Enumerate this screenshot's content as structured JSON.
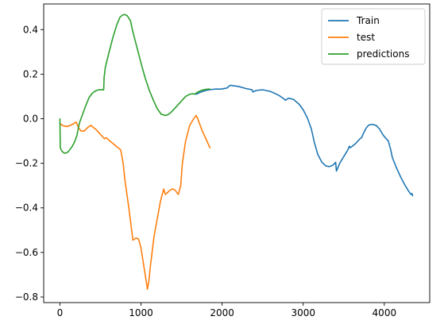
{
  "chart_data": {
    "type": "line",
    "title": "",
    "xlabel": "",
    "ylabel": "",
    "xlim": [
      -200,
      4560
    ],
    "ylim": [
      -0.825,
      0.515
    ],
    "x_ticks": [
      0,
      1000,
      2000,
      3000,
      4000
    ],
    "y_ticks": [
      -0.8,
      -0.6,
      -0.4,
      -0.2,
      0.0,
      0.2,
      0.4
    ],
    "x_tick_labels": [
      "0",
      "1000",
      "2000",
      "3000",
      "4000"
    ],
    "y_tick_labels": [
      "−0.8",
      "−0.6",
      "−0.4",
      "−0.2",
      "0.0",
      "0.2",
      "0.4"
    ],
    "grid": false,
    "legend_position": "top-right",
    "series": [
      {
        "name": "Train",
        "color": "#1f77b4",
        "x": [
          1680,
          1700,
          1740,
          1800,
          1860,
          1920,
          1990,
          2060,
          2100,
          2200,
          2300,
          2370,
          2380,
          2420,
          2500,
          2600,
          2700,
          2760,
          2780,
          2820,
          2880,
          2950,
          3000,
          3050,
          3100,
          3140,
          3180,
          3230,
          3280,
          3320,
          3360,
          3390,
          3400,
          3410,
          3450,
          3500,
          3550,
          3570,
          3580,
          3600,
          3650,
          3700,
          3720,
          3750,
          3780,
          3810,
          3850,
          3900,
          3940,
          3980,
          4000,
          4050,
          4080,
          4100,
          4150,
          4200,
          4250,
          4300,
          4330,
          4340,
          4350
        ],
        "y": [
          0.11,
          0.113,
          0.12,
          0.127,
          0.131,
          0.133,
          0.133,
          0.138,
          0.15,
          0.145,
          0.135,
          0.13,
          0.12,
          0.127,
          0.13,
          0.122,
          0.105,
          0.09,
          0.083,
          0.092,
          0.087,
          0.065,
          0.04,
          0.005,
          -0.045,
          -0.11,
          -0.16,
          -0.195,
          -0.212,
          -0.215,
          -0.21,
          -0.2,
          -0.195,
          -0.235,
          -0.2,
          -0.17,
          -0.14,
          -0.123,
          -0.13,
          -0.125,
          -0.11,
          -0.09,
          -0.085,
          -0.06,
          -0.04,
          -0.028,
          -0.025,
          -0.03,
          -0.045,
          -0.07,
          -0.08,
          -0.1,
          -0.14,
          -0.175,
          -0.22,
          -0.26,
          -0.295,
          -0.325,
          -0.34,
          -0.335,
          -0.345
        ]
      },
      {
        "name": "test",
        "color": "#ff7f0e",
        "x": [
          0,
          30,
          80,
          130,
          180,
          200,
          230,
          260,
          300,
          340,
          380,
          400,
          450,
          500,
          550,
          570,
          600,
          650,
          700,
          750,
          780,
          800,
          850,
          900,
          940,
          970,
          1000,
          1030,
          1060,
          1080,
          1100,
          1110,
          1130,
          1160,
          1200,
          1240,
          1280,
          1300,
          1330,
          1360,
          1390,
          1420,
          1460,
          1490,
          1510,
          1550,
          1600,
          1650,
          1680,
          1700,
          1750,
          1800,
          1850
        ],
        "y": [
          -0.02,
          -0.03,
          -0.035,
          -0.03,
          -0.02,
          -0.015,
          -0.04,
          -0.055,
          -0.055,
          -0.04,
          -0.03,
          -0.035,
          -0.05,
          -0.07,
          -0.09,
          -0.085,
          -0.095,
          -0.11,
          -0.125,
          -0.14,
          -0.2,
          -0.27,
          -0.4,
          -0.545,
          -0.535,
          -0.54,
          -0.58,
          -0.65,
          -0.72,
          -0.765,
          -0.72,
          -0.68,
          -0.62,
          -0.53,
          -0.45,
          -0.37,
          -0.315,
          -0.34,
          -0.33,
          -0.32,
          -0.315,
          -0.32,
          -0.34,
          -0.3,
          -0.2,
          -0.1,
          -0.03,
          0.0,
          0.015,
          0.0,
          -0.05,
          -0.09,
          -0.13
        ]
      },
      {
        "name": "predictions",
        "color": "#2ca02c",
        "x": [
          0,
          5,
          10,
          30,
          60,
          90,
          120,
          150,
          180,
          210,
          240,
          280,
          320,
          360,
          400,
          440,
          480,
          520,
          540,
          545,
          560,
          600,
          650,
          700,
          740,
          770,
          800,
          830,
          870,
          900,
          950,
          1000,
          1050,
          1100,
          1150,
          1200,
          1250,
          1300,
          1330,
          1360,
          1400,
          1450,
          1500,
          1550,
          1600,
          1640,
          1660,
          1680,
          1700,
          1750,
          1800,
          1850
        ],
        "y": [
          0.0,
          -0.13,
          -0.135,
          -0.148,
          -0.155,
          -0.152,
          -0.14,
          -0.125,
          -0.105,
          -0.075,
          -0.02,
          0.02,
          0.06,
          0.095,
          0.115,
          0.125,
          0.13,
          0.13,
          0.13,
          0.185,
          0.23,
          0.29,
          0.36,
          0.42,
          0.455,
          0.465,
          0.468,
          0.462,
          0.44,
          0.39,
          0.32,
          0.25,
          0.185,
          0.13,
          0.085,
          0.045,
          0.02,
          0.015,
          0.018,
          0.025,
          0.04,
          0.06,
          0.08,
          0.1,
          0.11,
          0.112,
          0.11,
          0.115,
          0.12,
          0.128,
          0.132,
          0.133
        ]
      }
    ]
  }
}
